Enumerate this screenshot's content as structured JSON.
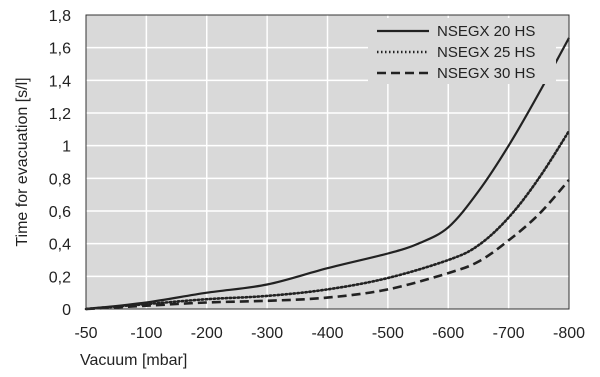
{
  "chart_data": {
    "type": "line",
    "title": "",
    "xlabel": "Vacuum [mbar]",
    "ylabel": "Time for evacuation [s/l]",
    "x_categories": [
      "-50",
      "-100",
      "-200",
      "-300",
      "-400",
      "-500",
      "-600",
      "-700",
      "-800"
    ],
    "y_ticks": [
      "0",
      "0,2",
      "0,4",
      "0,6",
      "0,8",
      "1",
      "1,2",
      "1,4",
      "1,6",
      "1,8"
    ],
    "ylim": [
      0,
      1.8
    ],
    "grid": true,
    "legend_position": "top-right",
    "series": [
      {
        "name": "NSEGX 20 HS",
        "style": "solid",
        "color": "#222222",
        "points": [
          [
            -50,
            0.0
          ],
          [
            -100,
            0.04
          ],
          [
            -200,
            0.1
          ],
          [
            -300,
            0.15
          ],
          [
            -400,
            0.25
          ],
          [
            -500,
            0.34
          ],
          [
            -550,
            0.4
          ],
          [
            -600,
            0.5
          ],
          [
            -650,
            0.72
          ],
          [
            -700,
            1.0
          ],
          [
            -750,
            1.32
          ],
          [
            -800,
            1.66
          ]
        ]
      },
      {
        "name": "NSEGX 25 HS",
        "style": "dotted",
        "color": "#222222",
        "points": [
          [
            -50,
            0.0
          ],
          [
            -100,
            0.03
          ],
          [
            -200,
            0.06
          ],
          [
            -300,
            0.08
          ],
          [
            -400,
            0.12
          ],
          [
            -500,
            0.19
          ],
          [
            -600,
            0.3
          ],
          [
            -650,
            0.39
          ],
          [
            -700,
            0.56
          ],
          [
            -750,
            0.8
          ],
          [
            -800,
            1.09
          ]
        ]
      },
      {
        "name": "NSEGX 30 HS",
        "style": "dashed",
        "color": "#222222",
        "points": [
          [
            -50,
            0.0
          ],
          [
            -100,
            0.02
          ],
          [
            -200,
            0.04
          ],
          [
            -300,
            0.05
          ],
          [
            -400,
            0.07
          ],
          [
            -500,
            0.12
          ],
          [
            -600,
            0.22
          ],
          [
            -650,
            0.29
          ],
          [
            -700,
            0.42
          ],
          [
            -750,
            0.58
          ],
          [
            -800,
            0.79
          ]
        ]
      }
    ]
  }
}
